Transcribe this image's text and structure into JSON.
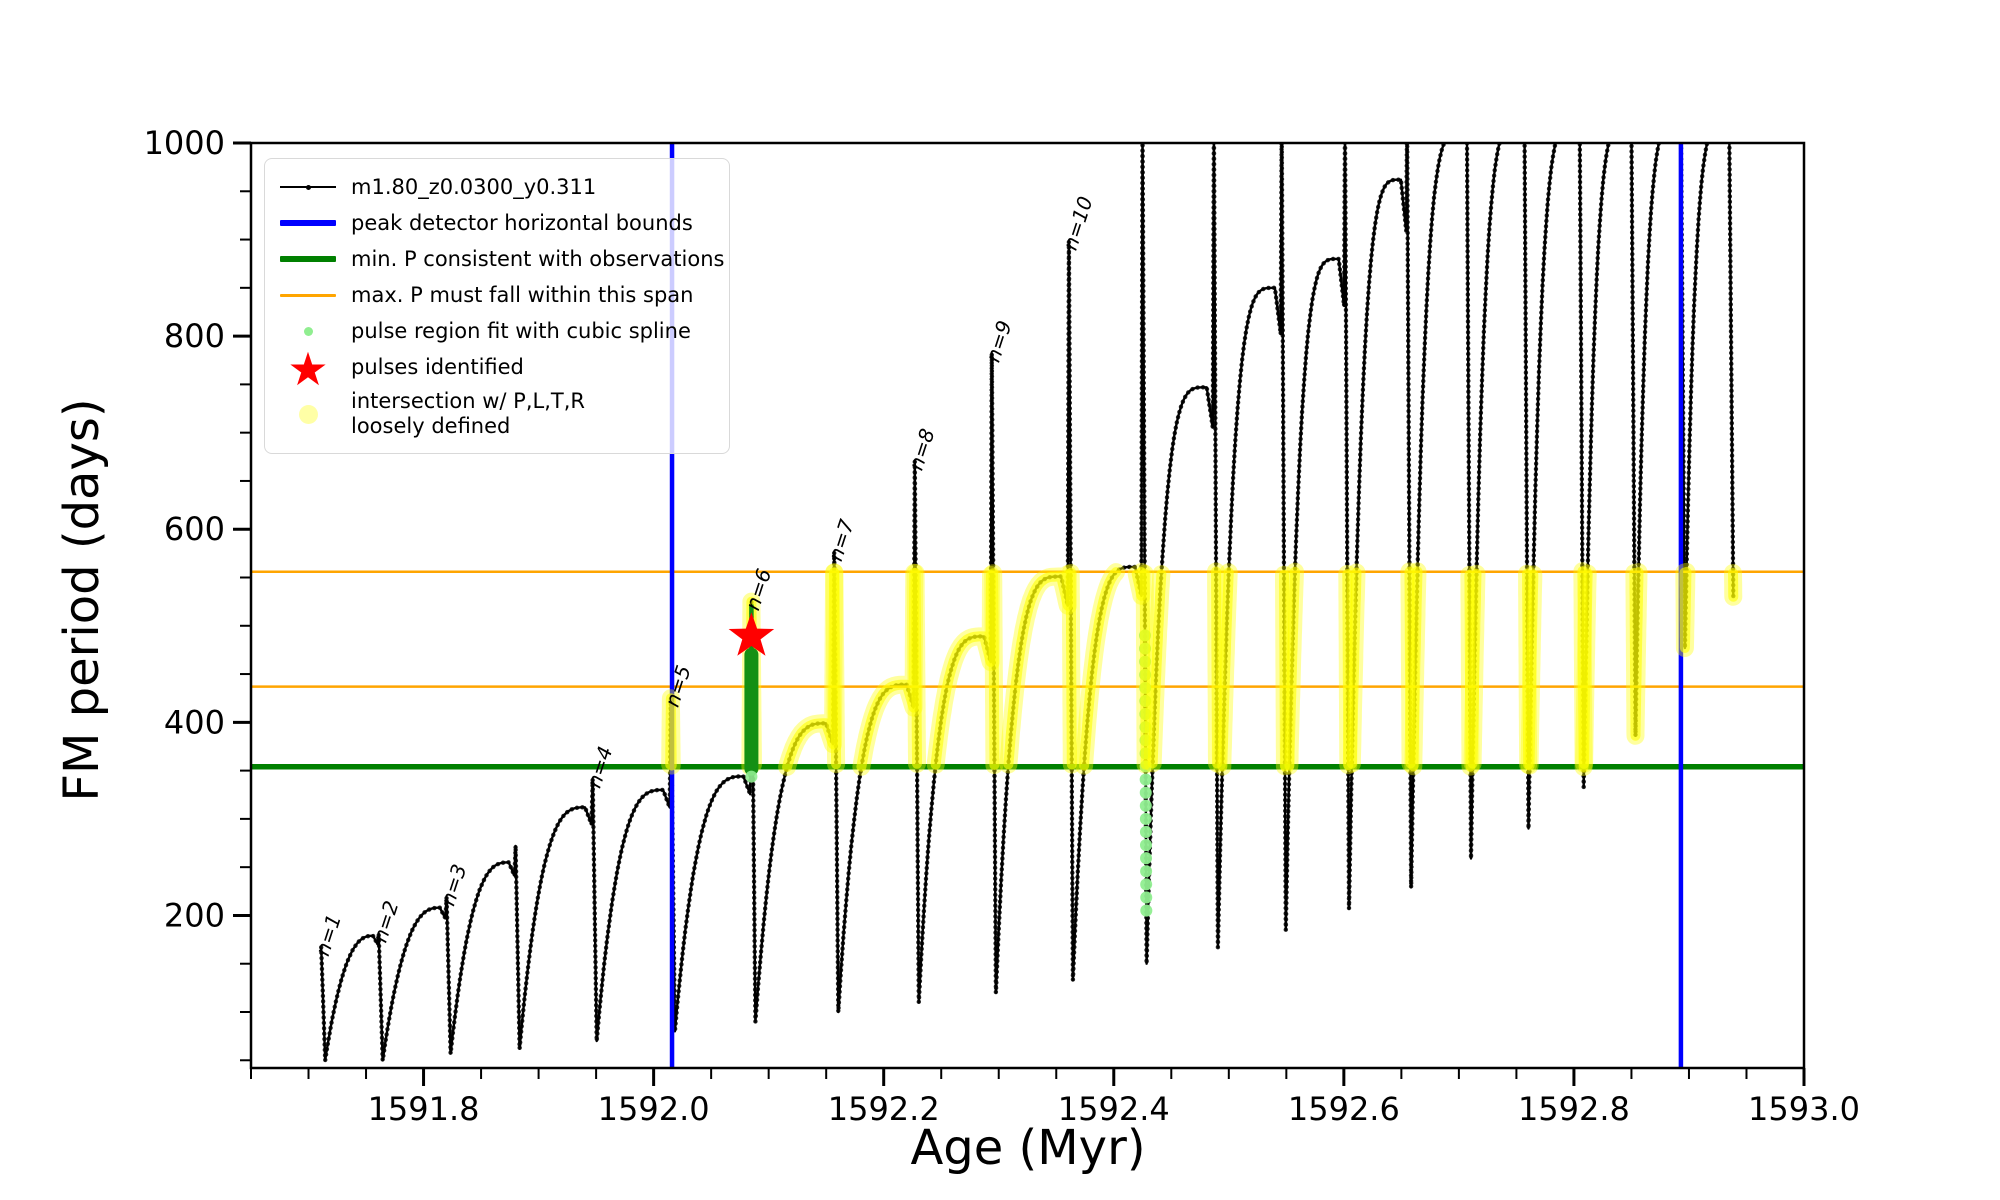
{
  "figure": {
    "xlabel": "Age (Myr)",
    "ylabel": "FM period (days)",
    "xlim": [
      1591.65,
      1593.0
    ],
    "ylim": [
      42,
      1000
    ],
    "x_ticks_major": [
      "1591.8",
      "1592.0",
      "1592.2",
      "1592.4",
      "1592.6",
      "1592.8",
      "1593.0"
    ],
    "x_tick_minor_step": 0.05,
    "y_ticks_major": [
      "200",
      "400",
      "600",
      "800",
      "1000"
    ],
    "y_tick_minor_step": 50,
    "grid": "off",
    "legend_position": "upper-left"
  },
  "colors": {
    "curve": "#000000",
    "peak_bounds_blue": "#0000ff",
    "min_p_green": "#008000",
    "max_p_orange": "#ffa500",
    "intersection_yellow": "#ffff00",
    "spline_palegreen": "#90ee90",
    "spline_darkgreen": "#149014",
    "pulse_star_red": "#ff0000",
    "legend_border": "#d9d9d9"
  },
  "legend": {
    "entries": [
      {
        "label": "m1.80_z0.0300_y0.311",
        "marker": "line-dot",
        "color": "#000000"
      },
      {
        "label": "peak detector horizontal bounds",
        "marker": "line",
        "color": "#0000ff",
        "thickness": 6
      },
      {
        "label": "min. P consistent with observations",
        "marker": "line",
        "color": "#008000",
        "thickness": 6
      },
      {
        "label": "max. P must fall within this span",
        "marker": "line",
        "color": "#ffa500",
        "thickness": 3
      },
      {
        "label": "pulse region fit with cubic spline",
        "marker": "dot",
        "color": "#90ee90"
      },
      {
        "label": "pulses identified",
        "marker": "star",
        "color": "#ff0000"
      },
      {
        "label_line1": "intersection w/ P,L,T,R",
        "label_line2": "loosely defined",
        "marker": "circle",
        "color": "rgba(255,255,0,0.35)"
      }
    ]
  },
  "chart_data": {
    "type": "line",
    "title": "",
    "xlabel": "Age (Myr)",
    "ylabel": "FM period (days)",
    "xlim": [
      1591.65,
      1593.0
    ],
    "ylim": [
      42,
      1000
    ],
    "series_name": "m1.80_z0.0300_y0.311",
    "clip_peak_value": 1020,
    "description": "Sawtooth FM-period pulse cycles: each cycle spikes to 'peak' at age x, drops to 'dip', then rises along an arc to 'crest' before the next spike. Peaks above 1000 are clipped by the axis.",
    "cycles": [
      {
        "x": 1591.711,
        "peak": 167,
        "dip": 50,
        "crest": 179,
        "label": "n=1"
      },
      {
        "x": 1591.761,
        "peak": 181,
        "dip": 50,
        "crest": 208,
        "label": "n=2"
      },
      {
        "x": 1591.82,
        "peak": 219,
        "dip": 57,
        "crest": 255,
        "label": "n=3"
      },
      {
        "x": 1591.88,
        "peak": 272,
        "dip": 62,
        "crest": 312,
        "label": null
      },
      {
        "x": 1591.947,
        "peak": 341,
        "dip": 70,
        "crest": 330,
        "label": "n=4"
      },
      {
        "x": 1592.015,
        "peak": 425,
        "dip": 80,
        "crest": 344,
        "label": "n=5"
      },
      {
        "x": 1592.085,
        "peak": 525,
        "dip": 90,
        "crest": 399,
        "label": "n=6"
      },
      {
        "x": 1592.157,
        "peak": 576,
        "dip": 100,
        "crest": 439,
        "label": "n=7"
      },
      {
        "x": 1592.227,
        "peak": 670,
        "dip": 110,
        "crest": 489,
        "label": "n=8"
      },
      {
        "x": 1592.294,
        "peak": 782,
        "dip": 120,
        "crest": 551,
        "label": "n=9"
      },
      {
        "x": 1592.361,
        "peak": 898,
        "dip": 133,
        "crest": 561,
        "label": "n=10"
      },
      {
        "x": 1592.425,
        "peak": 1020,
        "dip": 150,
        "crest": 747,
        "label": null
      },
      {
        "x": 1592.487,
        "peak": 1020,
        "dip": 167,
        "crest": 850,
        "label": null
      },
      {
        "x": 1592.546,
        "peak": 1020,
        "dip": 185,
        "crest": 880,
        "label": null
      },
      {
        "x": 1592.601,
        "peak": 1020,
        "dip": 207,
        "crest": 962,
        "label": null
      },
      {
        "x": 1592.655,
        "peak": 1020,
        "dip": 229,
        "crest": 1010,
        "label": null
      },
      {
        "x": 1592.707,
        "peak": 1020,
        "dip": 259,
        "crest": 1020,
        "label": null
      },
      {
        "x": 1592.757,
        "peak": 1020,
        "dip": 290,
        "crest": 1020,
        "label": null
      },
      {
        "x": 1592.805,
        "peak": 1020,
        "dip": 333,
        "crest": 1020,
        "label": null
      },
      {
        "x": 1592.85,
        "peak": 1020,
        "dip": 386,
        "crest": 1020,
        "label": null
      },
      {
        "x": 1592.893,
        "peak": 1020,
        "dip": 477,
        "crest": 1020,
        "label": null
      },
      {
        "x": 1592.935,
        "peak": 1020,
        "dip": 530,
        "crest": null,
        "label": null
      }
    ],
    "reference_lines": {
      "vertical_blue_bounds_x": [
        1592.016,
        1592.893
      ],
      "horizontal_green_min_P": 354,
      "horizontal_orange_span": [
        437,
        556
      ]
    },
    "markers": {
      "red_star_pulse": {
        "x": 1592.085,
        "y": 489
      },
      "darkgreen_spline_column": {
        "x": 1592.085,
        "y_from": 352,
        "y_thick_to": 470,
        "y_thin_to": 522
      },
      "palegreen_spline_column": {
        "x": 1592.425,
        "y_from": 200,
        "y_to": 490
      },
      "yellow_intersection_band": [
        354,
        556
      ]
    }
  }
}
